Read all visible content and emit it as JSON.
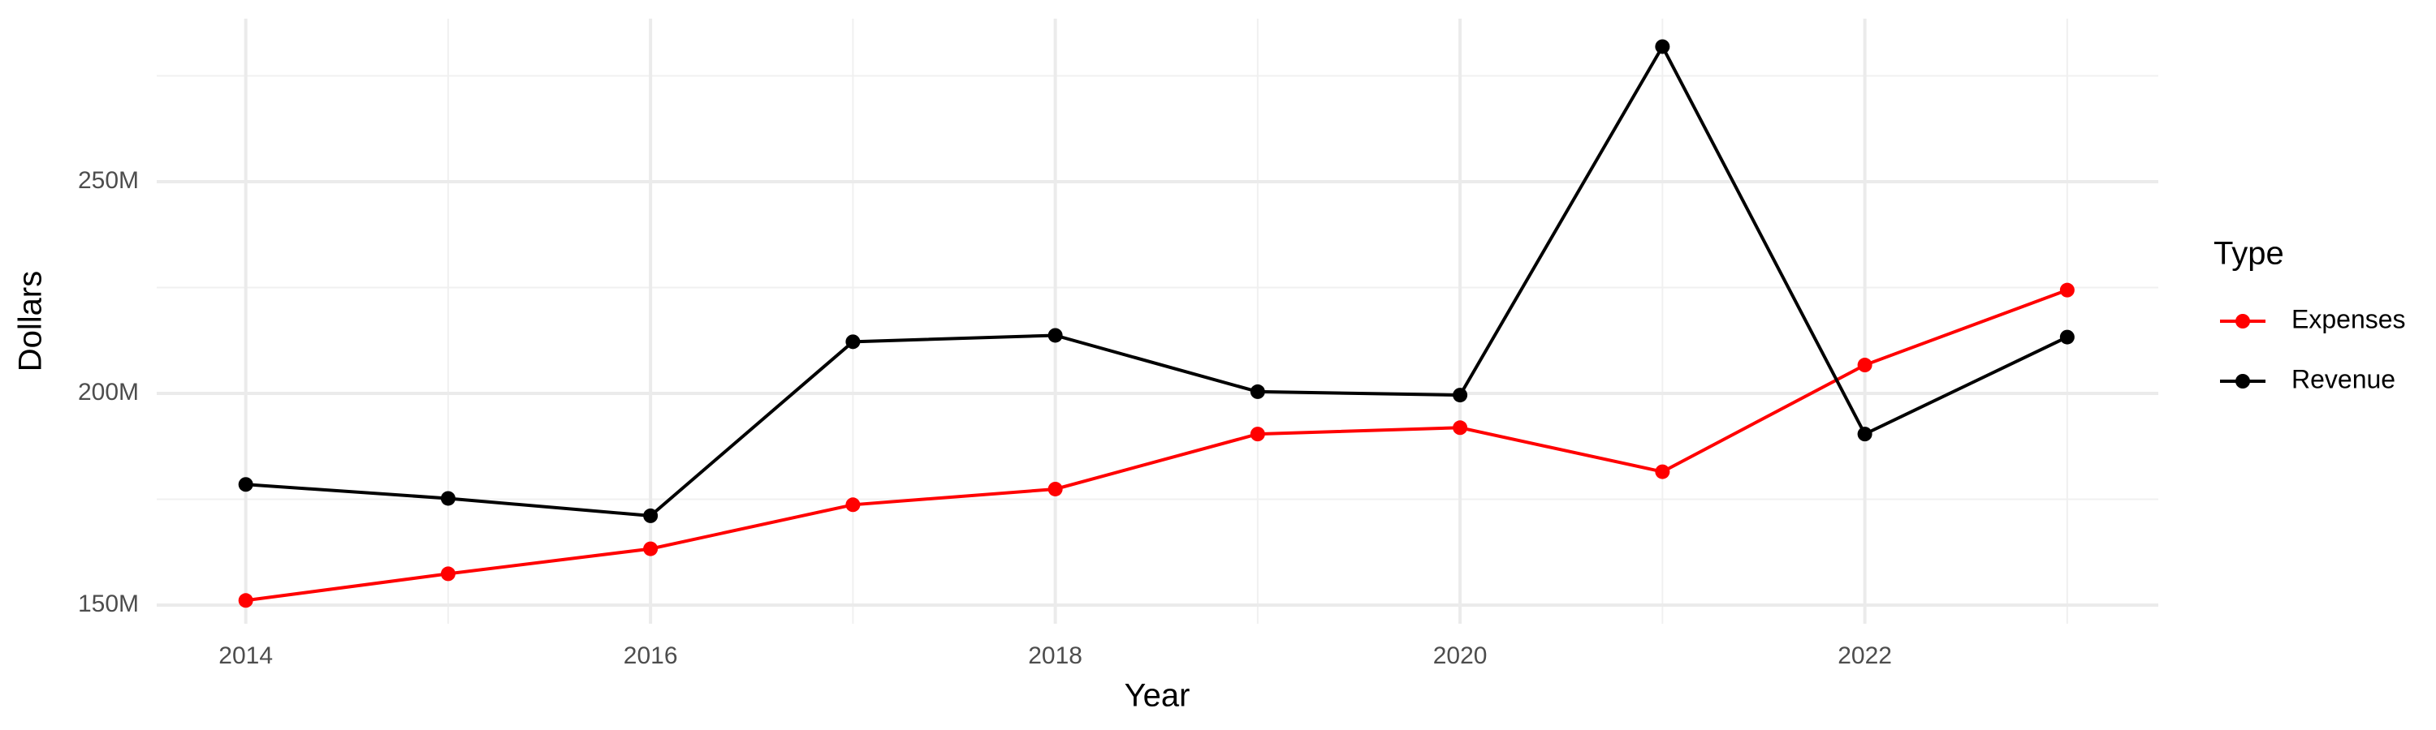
{
  "chart_data": {
    "type": "line",
    "x_label": "Year",
    "y_label": "Dollars",
    "legend_title": "Type",
    "x": [
      2014,
      2015,
      2016,
      2017,
      2018,
      2019,
      2020,
      2021,
      2022,
      2023
    ],
    "series": [
      {
        "name": "Expenses",
        "color": "#ff0000",
        "values": [
          151100000,
          157400000,
          163300000,
          173700000,
          177400000,
          190400000,
          191900000,
          181500000,
          206700000,
          224400000
        ]
      },
      {
        "name": "Revenue",
        "color": "#000000",
        "values": [
          178500000,
          175200000,
          171100000,
          212200000,
          213700000,
          200400000,
          199600000,
          281900000,
          190400000,
          213300000
        ]
      }
    ],
    "xlim": [
      2013.56,
      2023.45
    ],
    "xticks": [
      2014,
      2016,
      2018,
      2020,
      2022
    ],
    "ylim": [
      145600000,
      288500000
    ],
    "yticks": [
      {
        "value": 150000000,
        "label": "150M"
      },
      {
        "value": 200000000,
        "label": "200M"
      },
      {
        "value": 250000000,
        "label": "250M"
      }
    ],
    "grid": true,
    "legend": "right"
  }
}
